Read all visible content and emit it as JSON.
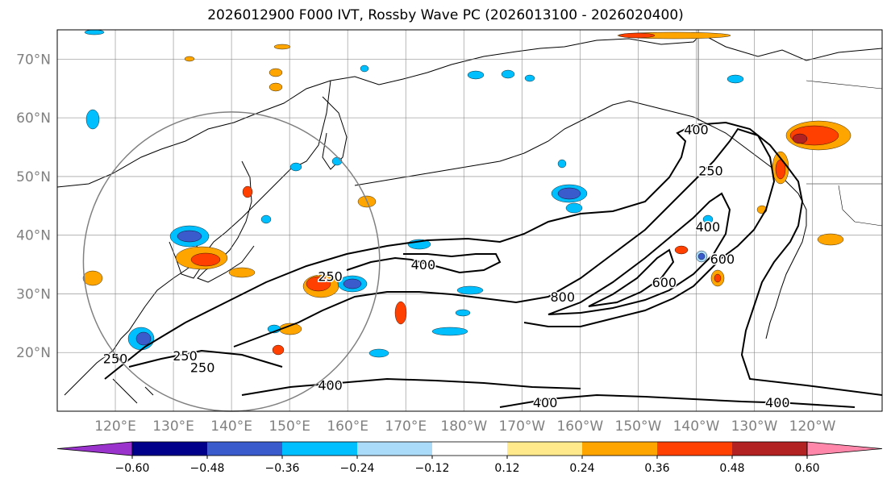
{
  "title": "2026012900 F000 IVT, Rossby Wave PC (2026013100 - 2026020400)",
  "chart_data": {
    "type": "map-contour",
    "projection": "equirectangular",
    "lon_range": [
      110,
      252
    ],
    "lat_range": [
      10,
      75
    ],
    "grid": true,
    "lon_ticks": [
      {
        "lon": 120,
        "label": "120°E"
      },
      {
        "lon": 130,
        "label": "130°E"
      },
      {
        "lon": 140,
        "label": "140°E"
      },
      {
        "lon": 150,
        "label": "150°E"
      },
      {
        "lon": 160,
        "label": "160°E"
      },
      {
        "lon": 170,
        "label": "170°E"
      },
      {
        "lon": 180,
        "label": "180°W"
      },
      {
        "lon": 190,
        "label": "170°W"
      },
      {
        "lon": 200,
        "label": "160°W"
      },
      {
        "lon": 210,
        "label": "150°W"
      },
      {
        "lon": 220,
        "label": "140°W"
      },
      {
        "lon": 230,
        "label": "130°W"
      },
      {
        "lon": 240,
        "label": "120°W"
      }
    ],
    "lat_ticks": [
      {
        "lat": 20,
        "label": "20°N"
      },
      {
        "lat": 30,
        "label": "30°N"
      },
      {
        "lat": 40,
        "label": "40°N"
      },
      {
        "lat": 50,
        "label": "50°N"
      },
      {
        "lat": 60,
        "label": "60°N"
      },
      {
        "lat": 70,
        "label": "70°N"
      }
    ],
    "colorbar": {
      "extend": "both",
      "levels": [
        "−0.60",
        "−0.48",
        "−0.36",
        "−0.24",
        "−0.12",
        "0.12",
        "0.24",
        "0.36",
        "0.48",
        "0.60"
      ],
      "colors": [
        "#9933cc",
        "#00008b",
        "#3a5bcc",
        "#00bfff",
        "#aadcf9",
        "#ffffff",
        "#ffe98a",
        "#ffa500",
        "#ff4000",
        "#b22222",
        "#ff88aa"
      ]
    },
    "ivt_contour_labels": [
      {
        "text": "400",
        "lon": 220,
        "lat": 58
      },
      {
        "text": "250",
        "lon": 222.5,
        "lat": 51
      },
      {
        "text": "400",
        "lon": 222,
        "lat": 41.5
      },
      {
        "text": "600",
        "lon": 224.5,
        "lat": 36
      },
      {
        "text": "600",
        "lon": 214.5,
        "lat": 32
      },
      {
        "text": "800",
        "lon": 197,
        "lat": 29.5
      },
      {
        "text": "250",
        "lon": 157,
        "lat": 33
      },
      {
        "text": "400",
        "lon": 173,
        "lat": 35
      },
      {
        "text": "250",
        "lon": 120,
        "lat": 19
      },
      {
        "text": "250",
        "lon": 132,
        "lat": 19.5
      },
      {
        "text": "250",
        "lon": 135,
        "lat": 17.5
      },
      {
        "text": "400",
        "lon": 157,
        "lat": 14.5
      },
      {
        "text": "400",
        "lon": 194,
        "lat": 11.5
      },
      {
        "text": "400",
        "lon": 234,
        "lat": 11.5
      }
    ],
    "region_circle": {
      "center_lon": 140,
      "center_lat": 35.5,
      "radius_deg": 25.5
    }
  }
}
